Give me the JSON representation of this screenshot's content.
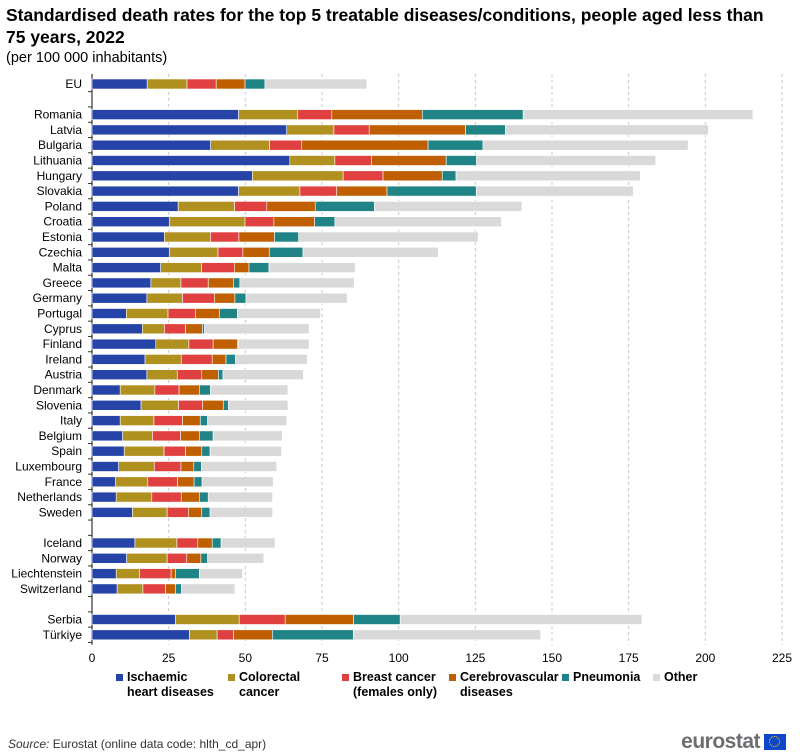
{
  "chart_data": {
    "type": "bar",
    "orientation": "horizontal",
    "stacked": true,
    "title": "Standardised death rates for the top 5 treatable diseases/conditions, people aged less than 75 years, 2022",
    "subtitle": "(per 100 000 inhabitants)",
    "xlim": [
      0,
      225
    ],
    "xticks": [
      0,
      25,
      50,
      75,
      100,
      125,
      150,
      175,
      200,
      225
    ],
    "grid": "vertical dashed",
    "legend_position": "bottom",
    "categories": [
      "EU",
      "",
      "Romania",
      "Latvia",
      "Bulgaria",
      "Lithuania",
      "Hungary",
      "Slovakia",
      "Poland",
      "Croatia",
      "Estonia",
      "Czechia",
      "Malta",
      "Greece",
      "Germany",
      "Portugal",
      "Cyprus",
      "Finland",
      "Ireland",
      "Austria",
      "Denmark",
      "Slovenia",
      "Italy",
      "Belgium",
      "Spain",
      "Luxembourg",
      "France",
      "Netherlands",
      "Sweden",
      "",
      "Iceland",
      "Norway",
      "Liechtenstein",
      "Switzerland",
      "",
      "Serbia",
      "Türkiye"
    ],
    "series": [
      {
        "name": "Ischaemic heart diseases",
        "color": "#2644A7",
        "values": [
          18.0,
          null,
          47.8,
          63.5,
          38.7,
          64.5,
          52.3,
          47.8,
          28.1,
          25.2,
          23.6,
          25.2,
          22.4,
          19.2,
          17.9,
          11.2,
          16.4,
          20.8,
          17.3,
          17.9,
          9.2,
          16.0,
          9.2,
          10.0,
          10.5,
          8.7,
          7.6,
          7.9,
          13.2,
          null,
          14.0,
          11.3,
          7.9,
          8.2,
          null,
          27.2,
          31.8
        ]
      },
      {
        "name": "Colorectal cancer",
        "color": "#B09120",
        "values": [
          13.0,
          null,
          19.3,
          15.4,
          19.2,
          14.7,
          29.6,
          20.0,
          18.4,
          24.7,
          15.0,
          15.9,
          13.3,
          9.8,
          11.6,
          13.6,
          7.2,
          10.8,
          11.8,
          9.9,
          11.3,
          12.2,
          11.0,
          9.7,
          13.0,
          11.6,
          10.6,
          11.6,
          11.3,
          null,
          13.7,
          13.2,
          7.6,
          8.4,
          null,
          20.8,
          9.0
        ]
      },
      {
        "name": "Breast cancer (females only)",
        "color": "#E04040",
        "values": [
          9.5,
          null,
          11.1,
          11.5,
          10.5,
          11.9,
          13.0,
          12.0,
          10.5,
          9.4,
          9.3,
          8.1,
          10.7,
          8.9,
          10.4,
          8.9,
          6.9,
          7.9,
          10.1,
          8.0,
          7.9,
          7.9,
          9.3,
          9.2,
          7.0,
          8.7,
          9.7,
          9.6,
          6.9,
          null,
          6.8,
          6.4,
          10.3,
          7.4,
          null,
          15.0,
          5.3
        ]
      },
      {
        "name": "Cerebrovascular diseases",
        "color": "#C05F00",
        "values": [
          9.4,
          null,
          29.5,
          31.4,
          41.2,
          24.4,
          19.3,
          16.4,
          15.8,
          13.3,
          11.6,
          8.6,
          4.8,
          8.2,
          6.7,
          7.8,
          5.5,
          8.0,
          4.5,
          5.4,
          6.6,
          6.7,
          5.8,
          6.1,
          5.3,
          4.2,
          5.4,
          5.9,
          4.4,
          null,
          4.7,
          4.6,
          1.4,
          3.2,
          null,
          22.3,
          12.7
        ]
      },
      {
        "name": "Pneumonia",
        "color": "#208486",
        "values": [
          6.5,
          null,
          32.9,
          13.0,
          17.9,
          9.9,
          4.5,
          29.1,
          19.3,
          6.6,
          7.9,
          11.0,
          6.5,
          2.1,
          3.6,
          5.9,
          0.7,
          0.2,
          3.1,
          1.5,
          3.6,
          1.7,
          2.4,
          4.5,
          2.7,
          2.5,
          2.6,
          2.9,
          2.7,
          null,
          2.9,
          2.2,
          7.8,
          2.0,
          null,
          15.2,
          26.4
        ]
      },
      {
        "name": "Other",
        "color": "#D9D9D9",
        "values": [
          33.2,
          null,
          74.9,
          66.2,
          66.9,
          58.4,
          60.1,
          51.2,
          48.1,
          54.3,
          58.5,
          44.1,
          28.1,
          37.3,
          33.0,
          27.1,
          34.1,
          23.1,
          23.4,
          26.2,
          25.3,
          19.4,
          25.8,
          22.6,
          23.3,
          24.5,
          23.2,
          21.0,
          20.4,
          null,
          17.6,
          18.3,
          14.1,
          17.4,
          null,
          78.8,
          61.1
        ]
      }
    ],
    "legend": [
      {
        "line1": "Ischaemic",
        "line2": "heart diseases"
      },
      {
        "line1": "Colorectal",
        "line2": "cancer"
      },
      {
        "line1": "Breast cancer",
        "line2": "(females only)"
      },
      {
        "line1": "Cerebrovascular",
        "line2": "diseases"
      },
      {
        "line1": "Pneumonia",
        "line2": ""
      },
      {
        "line1": "Other",
        "line2": ""
      }
    ]
  },
  "footer": {
    "source_label": "Source:",
    "source_text": " Eurostat (online data code: hlth_cd_apr)",
    "logo": "eurostat"
  }
}
